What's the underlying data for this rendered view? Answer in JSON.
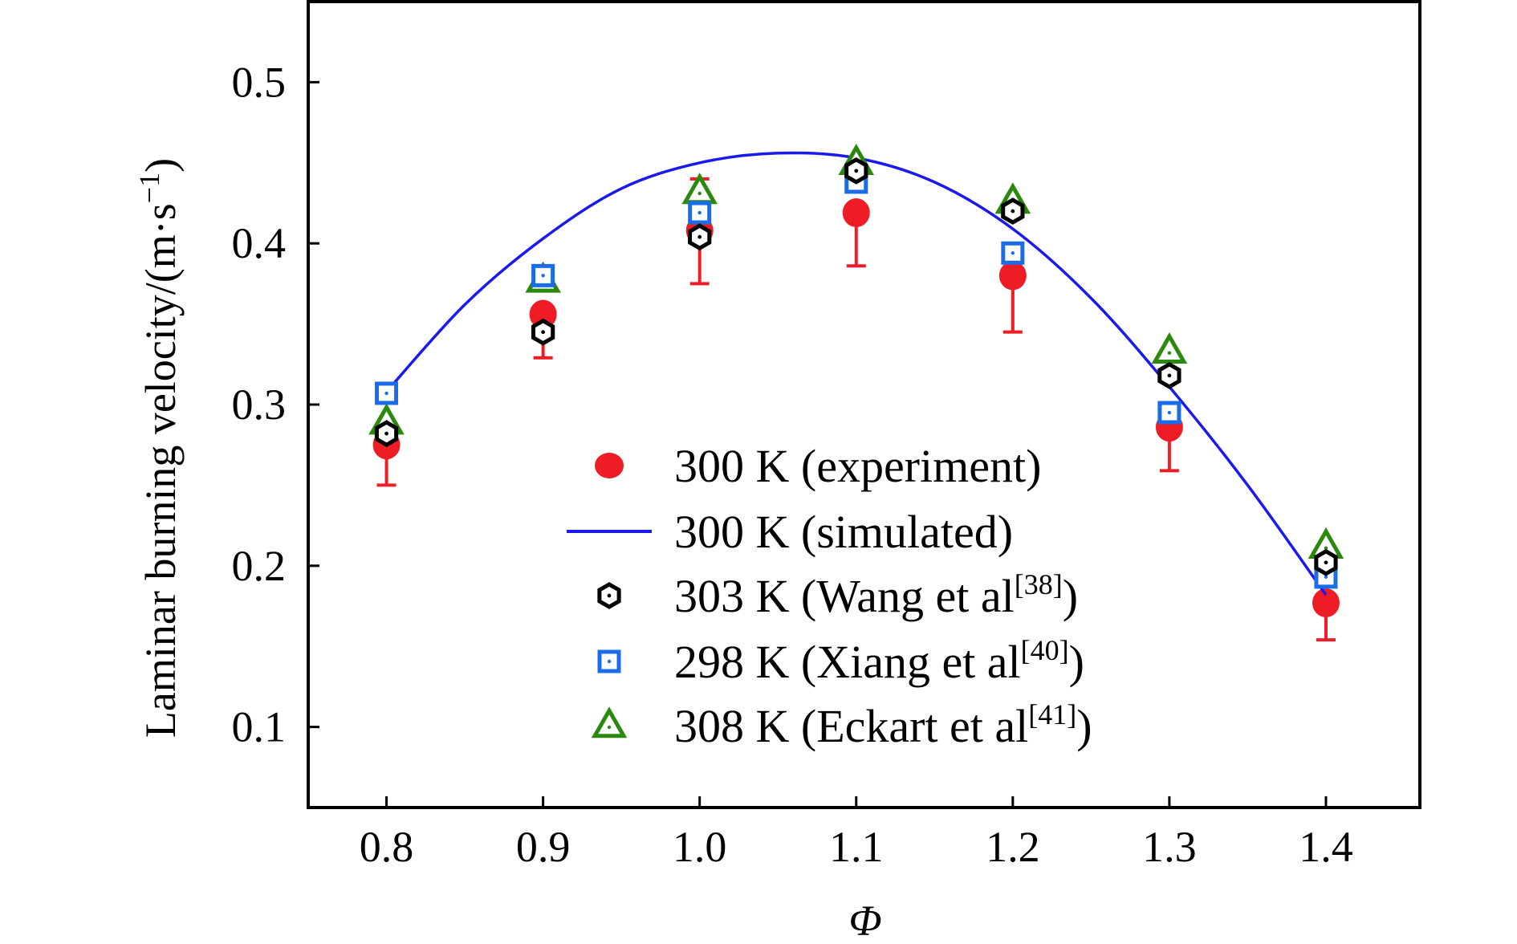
{
  "chart_data": {
    "type": "scatter",
    "xlabel": "Φ",
    "ylabel": "Laminar burning velocity/(m·s",
    "ylabel_sup": "−1",
    "ylabel_close": ")",
    "xlim": [
      0.75,
      1.46
    ],
    "ylim": [
      0.05,
      0.55
    ],
    "xticks": [
      0.8,
      0.9,
      1.0,
      1.1,
      1.2,
      1.3,
      1.4
    ],
    "xtick_labels": [
      "0.8",
      "0.9",
      "1.0",
      "1.1",
      "1.2",
      "1.3",
      "1.4"
    ],
    "yticks": [
      0.1,
      0.2,
      0.3,
      0.4,
      0.5
    ],
    "ytick_labels": [
      "0.1",
      "0.2",
      "0.3",
      "0.4",
      "0.5"
    ],
    "legend_position": "lower-center",
    "grid": false,
    "series": [
      {
        "name": "300 K (experiment)",
        "marker": "filled-circle",
        "color": "#ee1c24",
        "x": [
          0.8,
          0.9,
          1.0,
          1.1,
          1.2,
          1.3,
          1.4
        ],
        "y": [
          0.275,
          0.356,
          0.408,
          0.419,
          0.38,
          0.286,
          0.177
        ],
        "err_low": [
          0.25,
          0.329,
          0.375,
          0.386,
          0.345,
          0.259,
          0.154
        ],
        "err_high": [
          0.275,
          0.356,
          0.44,
          0.419,
          0.38,
          0.286,
          0.177
        ]
      },
      {
        "name": "300 K (simulated)",
        "marker": "line",
        "color": "#1a1aee",
        "x": [
          0.8,
          0.85,
          0.9,
          0.95,
          1.0,
          1.05,
          1.1,
          1.15,
          1.2,
          1.25,
          1.3,
          1.35,
          1.4
        ],
        "y": [
          0.308,
          0.362,
          0.403,
          0.434,
          0.45,
          0.456,
          0.453,
          0.438,
          0.409,
          0.366,
          0.311,
          0.25,
          0.182
        ]
      },
      {
        "name": "303 K (Wang et al",
        "name_sup": "[38]",
        "name_close": ")",
        "marker": "hexagon",
        "color": "#000000",
        "x": [
          0.8,
          0.9,
          1.0,
          1.1,
          1.2,
          1.3,
          1.4
        ],
        "y": [
          0.282,
          0.345,
          0.404,
          0.445,
          0.42,
          0.318,
          0.202
        ]
      },
      {
        "name": "298 K (Xiang et al",
        "name_sup": "[40]",
        "name_close": ")",
        "marker": "square",
        "color": "#1a6ce8",
        "x": [
          0.8,
          0.9,
          1.0,
          1.1,
          1.2,
          1.3,
          1.4
        ],
        "y": [
          0.307,
          0.38,
          0.419,
          0.438,
          0.394,
          0.295,
          0.193
        ]
      },
      {
        "name": "308 K (Eckart et al",
        "name_sup": "[41]",
        "name_close": ")",
        "marker": "triangle",
        "color": "#2b8a0e",
        "x": [
          0.8,
          0.9,
          1.0,
          1.1,
          1.2,
          1.3,
          1.4
        ],
        "y": [
          0.289,
          0.377,
          0.432,
          0.45,
          0.426,
          0.333,
          0.212
        ]
      }
    ]
  }
}
